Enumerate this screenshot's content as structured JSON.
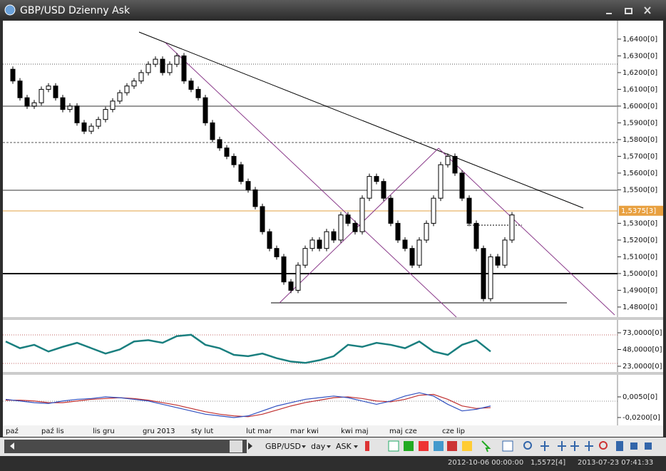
{
  "window": {
    "title": "GBP/USD Dzienny Ask"
  },
  "chart": {
    "price": {
      "ylim": [
        1.474,
        1.6506
      ],
      "ticks": [
        {
          "value": 1.64,
          "label": "1,6400[0]"
        },
        {
          "value": 1.63,
          "label": "1,6300[0]"
        },
        {
          "value": 1.62,
          "label": "1,6200[0]"
        },
        {
          "value": 1.61,
          "label": "1,6100[0]"
        },
        {
          "value": 1.6,
          "label": "1,6000[0]"
        },
        {
          "value": 1.59,
          "label": "1,5900[0]"
        },
        {
          "value": 1.58,
          "label": "1,5800[0]"
        },
        {
          "value": 1.57,
          "label": "1,5700[0]"
        },
        {
          "value": 1.56,
          "label": "1,5600[0]"
        },
        {
          "value": 1.55,
          "label": "1,5500[0]"
        },
        {
          "value": 1.53,
          "label": "1,5300[0]"
        },
        {
          "value": 1.52,
          "label": "1,5200[0]"
        },
        {
          "value": 1.51,
          "label": "1,5100[0]"
        },
        {
          "value": 1.5,
          "label": "1,5000[0]"
        },
        {
          "value": 1.49,
          "label": "1,4900[0]"
        },
        {
          "value": 1.48,
          "label": "1,4800[0]"
        }
      ],
      "last": {
        "value": 1.5375,
        "label": "1,5375[3]"
      },
      "closes": [
        1.622,
        1.615,
        1.605,
        1.6,
        1.602,
        1.61,
        1.612,
        1.605,
        1.598,
        1.6,
        1.59,
        1.585,
        1.588,
        1.592,
        1.598,
        1.603,
        1.608,
        1.612,
        1.615,
        1.62,
        1.625,
        1.628,
        1.62,
        1.625,
        1.63,
        1.615,
        1.61,
        1.605,
        1.59,
        1.58,
        1.575,
        1.57,
        1.565,
        1.555,
        1.55,
        1.54,
        1.525,
        1.515,
        1.51,
        1.495,
        1.49,
        1.505,
        1.515,
        1.52,
        1.515,
        1.525,
        1.52,
        1.535,
        1.53,
        1.525,
        1.545,
        1.558,
        1.555,
        1.545,
        1.53,
        1.52,
        1.515,
        1.505,
        1.52,
        1.53,
        1.545,
        1.565,
        1.57,
        1.56,
        1.545,
        1.53,
        1.515,
        1.485,
        1.51,
        1.505,
        1.52,
        1.535
      ]
    },
    "rsi": {
      "ylim": [
        16.6,
        89
      ],
      "ticks": [
        {
          "value": 73,
          "label": "73,0000[0]"
        },
        {
          "value": 48,
          "label": "48,0000[0]"
        },
        {
          "value": 23,
          "label": "23,0000[0]"
        }
      ],
      "values": [
        60,
        50,
        55,
        45,
        52,
        58,
        50,
        42,
        48,
        60,
        62,
        58,
        68,
        70,
        55,
        50,
        40,
        38,
        42,
        35,
        30,
        28,
        32,
        38,
        55,
        52,
        58,
        55,
        50,
        60,
        45,
        40,
        55,
        62,
        45
      ]
    },
    "macd": {
      "ylim": [
        -0.0278,
        0.03
      ],
      "ticks": [
        {
          "value": 0.005,
          "label": "0,0050[0]"
        },
        {
          "value": -0.02,
          "label": "-0,0200[0]"
        }
      ],
      "macd": [
        0.002,
        0.0,
        -0.002,
        -0.003,
        0.0,
        0.002,
        0.003,
        0.005,
        0.004,
        0.002,
        0.0,
        -0.004,
        -0.008,
        -0.012,
        -0.016,
        -0.018,
        -0.02,
        -0.018,
        -0.012,
        -0.006,
        -0.002,
        0.002,
        0.004,
        0.006,
        0.004,
        0.0,
        -0.004,
        0.0,
        0.006,
        0.01,
        0.006,
        -0.004,
        -0.012,
        -0.01,
        -0.006
      ],
      "signal": [
        0.001,
        0.001,
        0.0,
        -0.002,
        -0.002,
        0.0,
        0.002,
        0.003,
        0.004,
        0.003,
        0.001,
        -0.002,
        -0.005,
        -0.009,
        -0.013,
        -0.016,
        -0.018,
        -0.019,
        -0.016,
        -0.011,
        -0.006,
        -0.002,
        0.001,
        0.004,
        0.005,
        0.003,
        0.0,
        -0.001,
        0.002,
        0.007,
        0.008,
        0.002,
        -0.006,
        -0.009,
        -0.008
      ]
    },
    "dates": [
      "paź",
      "paź lis",
      "lis gru",
      "gru 2013",
      "sty lut",
      "lut mar",
      "mar kwi",
      "kwi maj",
      "maj cze",
      "cze lip"
    ]
  },
  "toolbar": {
    "symbol": "GBP/USD",
    "period": "day",
    "side": "ASK"
  },
  "status": {
    "start": "2012-10-06 00:00:00",
    "price": "1,5572[4]",
    "time": "2013-07-23 07:41:33"
  }
}
